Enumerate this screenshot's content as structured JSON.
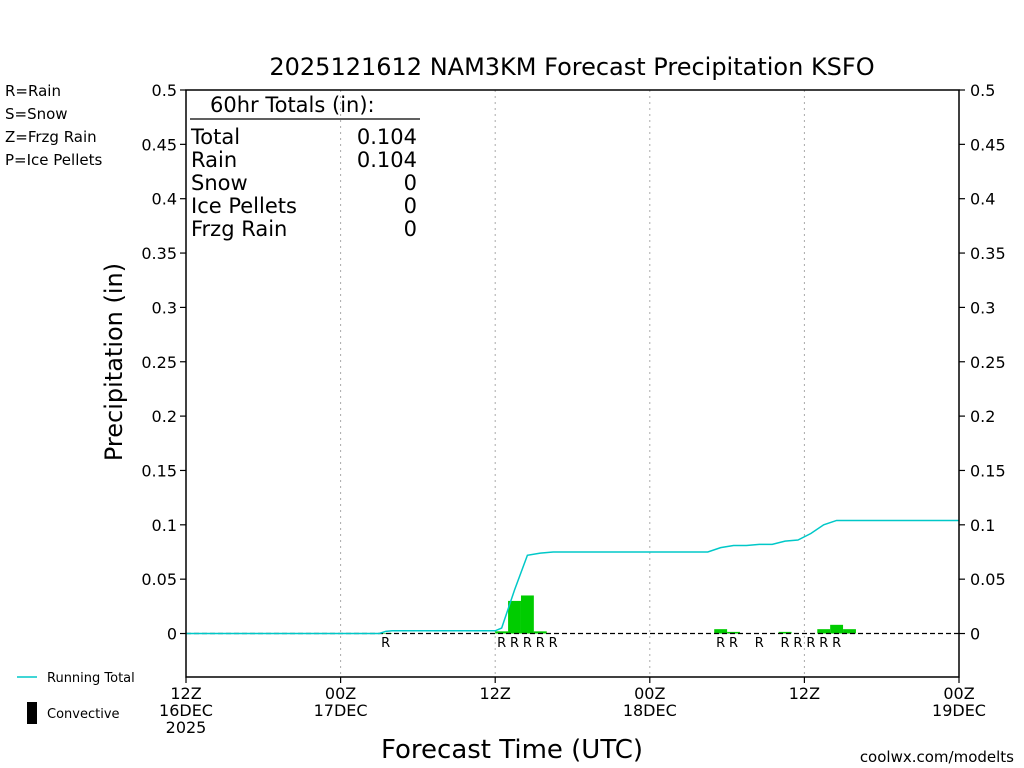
{
  "chart_data": {
    "type": "bar",
    "title": "2025121612 NAM3KM Forecast Precipitation KSFO",
    "xlabel": "Forecast Time (UTC)",
    "ylabel": "Precipitation (in)",
    "ylim": [
      -0.04,
      0.5
    ],
    "yticks": [
      0,
      0.05,
      0.1,
      0.15,
      0.2,
      0.25,
      0.3,
      0.35,
      0.4,
      0.45,
      0.5
    ],
    "ytick_labels": [
      "0",
      "0.05",
      "0.1",
      "0.15",
      "0.2",
      "0.25",
      "0.3",
      "0.35",
      "0.4",
      "0.45",
      "0.5"
    ],
    "xlim_hours": [
      0,
      60
    ],
    "grid": "vertical dotted",
    "xticks": [
      {
        "hour": 0,
        "lines": [
          "12Z",
          "16DEC",
          "2025"
        ]
      },
      {
        "hour": 12,
        "lines": [
          "00Z",
          "17DEC"
        ]
      },
      {
        "hour": 24,
        "lines": [
          "12Z"
        ]
      },
      {
        "hour": 36,
        "lines": [
          "00Z",
          "18DEC"
        ]
      },
      {
        "hour": 48,
        "lines": [
          "12Z"
        ]
      },
      {
        "hour": 60,
        "lines": [
          "00Z",
          "19DEC"
        ]
      }
    ],
    "hourly_precip_rain": [
      {
        "hour": 15.5,
        "value": 0.0005
      },
      {
        "hour": 24.5,
        "value": 0.002
      },
      {
        "hour": 25.5,
        "value": 0.03
      },
      {
        "hour": 26.5,
        "value": 0.035
      },
      {
        "hour": 27.5,
        "value": 0.002
      },
      {
        "hour": 41.5,
        "value": 0.004
      },
      {
        "hour": 42.5,
        "value": 0.0015
      },
      {
        "hour": 46.5,
        "value": 0.0015
      },
      {
        "hour": 49.5,
        "value": 0.004
      },
      {
        "hour": 50.5,
        "value": 0.008
      },
      {
        "hour": 51.5,
        "value": 0.004
      }
    ],
    "ptype_markers": [
      {
        "hour": 15.5,
        "label": "R"
      },
      {
        "hour": 24.5,
        "label": "R"
      },
      {
        "hour": 25.5,
        "label": "R"
      },
      {
        "hour": 26.5,
        "label": "R"
      },
      {
        "hour": 27.5,
        "label": "R"
      },
      {
        "hour": 28.5,
        "label": "R"
      },
      {
        "hour": 41.5,
        "label": "R"
      },
      {
        "hour": 42.5,
        "label": "R"
      },
      {
        "hour": 44.5,
        "label": "R"
      },
      {
        "hour": 46.5,
        "label": "R"
      },
      {
        "hour": 47.5,
        "label": "R"
      },
      {
        "hour": 48.5,
        "label": "R"
      },
      {
        "hour": 49.5,
        "label": "R"
      },
      {
        "hour": 50.5,
        "label": "R"
      }
    ],
    "running_total": {
      "name": "Running Total",
      "points": [
        [
          0,
          0
        ],
        [
          15,
          0
        ],
        [
          15.5,
          0.002
        ],
        [
          16,
          0.0025
        ],
        [
          24,
          0.0025
        ],
        [
          24.5,
          0.005
        ],
        [
          25.5,
          0.04
        ],
        [
          26.5,
          0.072
        ],
        [
          27.5,
          0.074
        ],
        [
          28.5,
          0.075
        ],
        [
          40.5,
          0.075
        ],
        [
          41.5,
          0.079
        ],
        [
          42.5,
          0.081
        ],
        [
          43.5,
          0.081
        ],
        [
          44.5,
          0.082
        ],
        [
          45.5,
          0.082
        ],
        [
          46.5,
          0.085
        ],
        [
          47.5,
          0.086
        ],
        [
          48.5,
          0.092
        ],
        [
          49.5,
          0.1
        ],
        [
          50.5,
          0.104
        ],
        [
          60,
          0.104
        ]
      ]
    },
    "totals": {
      "header": "60hr Totals (in):",
      "rows": [
        {
          "label": "Total",
          "value": "0.104"
        },
        {
          "label": "Rain",
          "value": "0.104"
        },
        {
          "label": "Snow",
          "value": "0"
        },
        {
          "label": "Ice Pellets",
          "value": "0"
        },
        {
          "label": "Frzg Rain",
          "value": "0"
        }
      ]
    },
    "ptype_legend": [
      {
        "text": "R=Rain",
        "color": "#22cc22"
      },
      {
        "text": "S=Snow",
        "color": "#3366ee"
      },
      {
        "text": "Z=Frzg Rain",
        "color": "#f09040"
      },
      {
        "text": "P=Ice Pellets",
        "color": "#e0208a"
      }
    ],
    "legend": [
      {
        "text": "Running Total",
        "kind": "line",
        "color": "#00c8c8"
      },
      {
        "text": "Convective",
        "kind": "bar",
        "color": "#000000"
      }
    ],
    "colors": {
      "rain_bar": "#00cc00",
      "running_total": "#00c8c8",
      "credit": "#cc1111"
    },
    "credit": "coolwx.com/modelts"
  }
}
